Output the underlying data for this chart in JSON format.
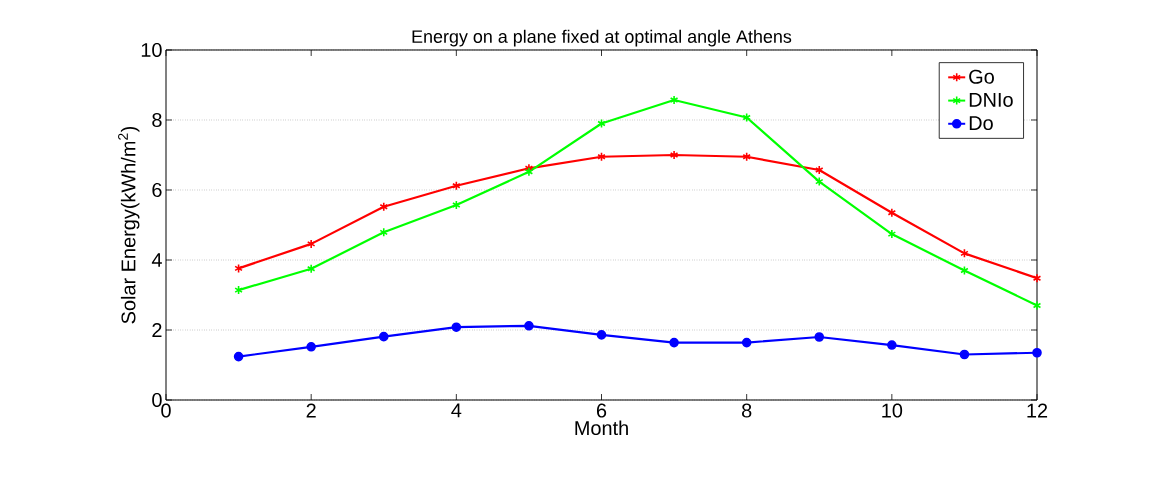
{
  "chart_data": {
    "type": "line",
    "title": "Energy on a plane fixed at optimal angle Athens",
    "xlabel": "Month",
    "ylabel": "Solar Energy(kWh/m$^{2}$)",
    "x": [
      1,
      2,
      3,
      4,
      5,
      6,
      7,
      8,
      9,
      10,
      11,
      12
    ],
    "series": [
      {
        "name": "Go",
        "color": "#ff0000",
        "marker": "cross",
        "values": [
          3.76,
          4.46,
          5.52,
          6.12,
          6.62,
          6.95,
          7.0,
          6.95,
          6.57,
          5.35,
          4.19,
          3.48
        ]
      },
      {
        "name": "DNIo",
        "color": "#00ff00",
        "marker": "cross",
        "values": [
          3.14,
          3.75,
          4.79,
          5.57,
          6.52,
          7.9,
          8.57,
          8.07,
          6.24,
          4.74,
          3.7,
          2.7
        ]
      },
      {
        "name": "Do",
        "color": "#0000ff",
        "marker": "circle",
        "values": [
          1.24,
          1.52,
          1.81,
          2.08,
          2.12,
          1.86,
          1.64,
          1.64,
          1.8,
          1.57,
          1.3,
          1.35
        ]
      }
    ],
    "xlim": [
      0,
      12
    ],
    "ylim": [
      0,
      10
    ],
    "xticks": [
      0,
      2,
      4,
      6,
      8,
      10,
      12
    ],
    "yticks": [
      0,
      2,
      4,
      6,
      8,
      10
    ],
    "grid": "y",
    "legend": "top right",
    "line_style": "solid"
  }
}
